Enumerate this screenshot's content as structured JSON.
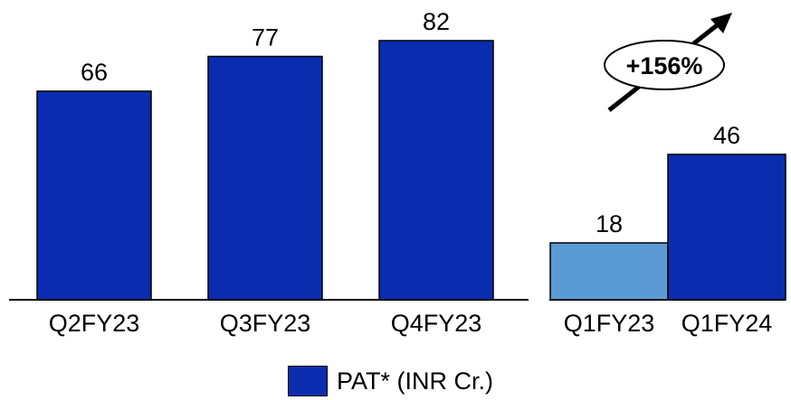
{
  "chart_data": [
    {
      "type": "bar",
      "categories": [
        "Q2FY23",
        "Q3FY23",
        "Q4FY23"
      ],
      "series": [
        {
          "name": "PAT* (INR Cr.)",
          "values": [
            66,
            77,
            82
          ],
          "color": "#0a2daf"
        }
      ],
      "data_labels": [
        "66",
        "77",
        "82"
      ],
      "ylim": [
        0,
        100
      ]
    },
    {
      "type": "bar",
      "categories": [
        "Q1FY23",
        "Q1FY24"
      ],
      "series": [
        {
          "name": "PAT* (INR Cr.)",
          "values": [
            18,
            46
          ],
          "colors": [
            "#5b9bd5",
            "#0a2daf"
          ]
        }
      ],
      "data_labels": [
        "18",
        "46"
      ],
      "annotation": "+156%",
      "ylim": [
        0,
        100
      ]
    }
  ],
  "legend": {
    "label": "PAT* (INR Cr.)",
    "color": "#0a2daf",
    "position": "bottom-center"
  }
}
